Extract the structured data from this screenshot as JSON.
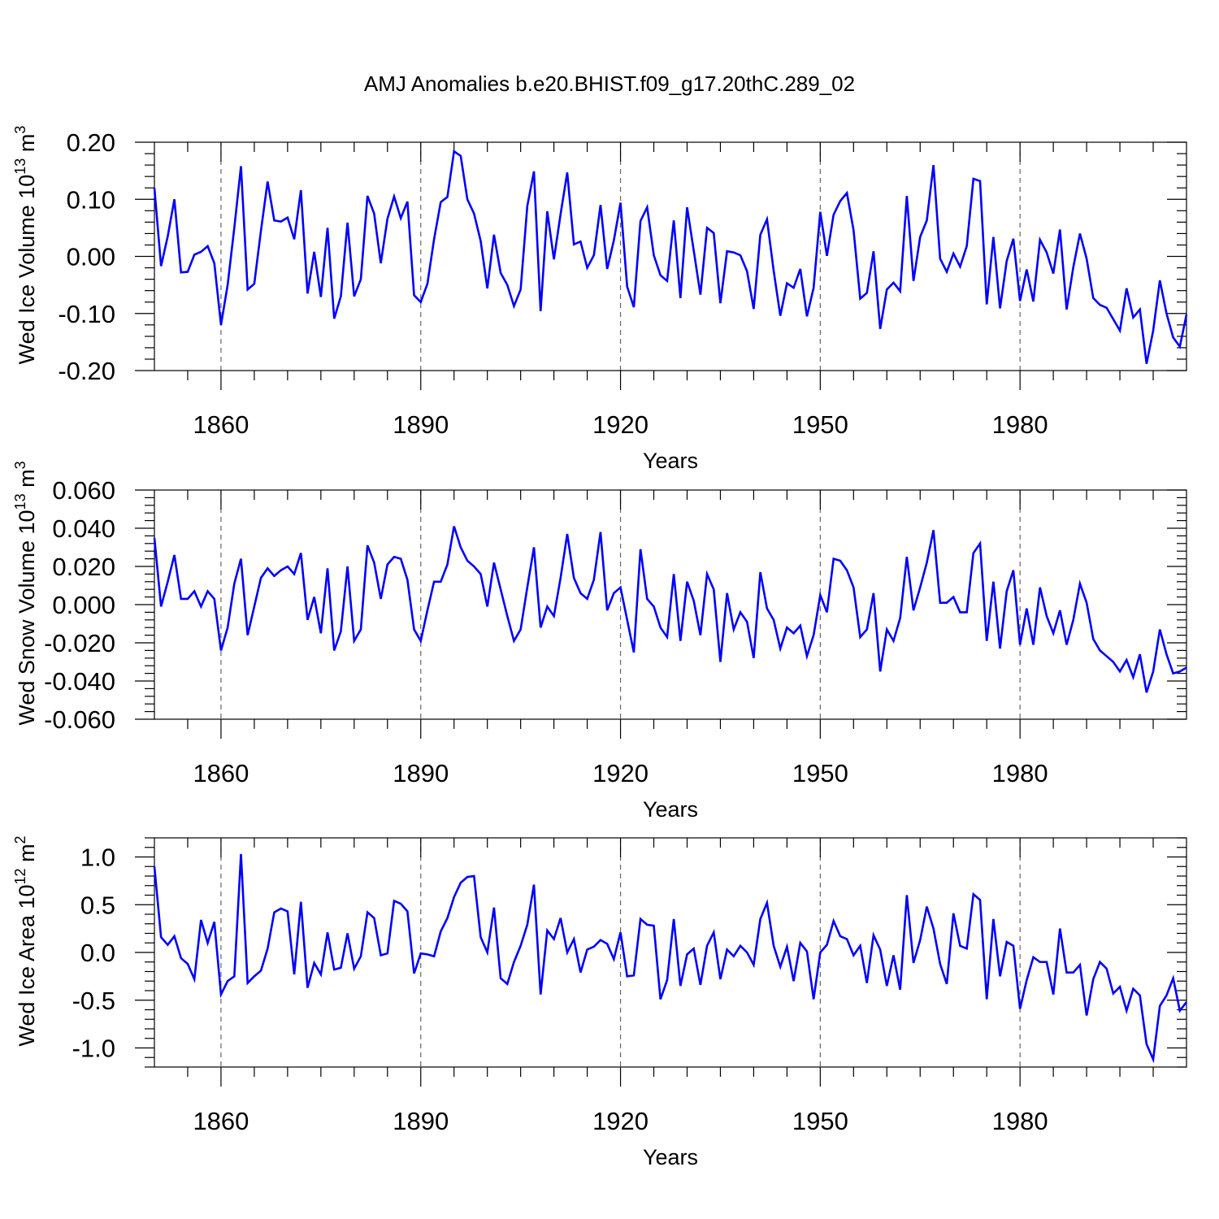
{
  "title": "AMJ Anomalies b.e20.BHIST.f09_g17.20thC.289_02",
  "chart_data": [
    {
      "type": "line",
      "ylabel": {
        "prefix": "Wed Ice Volume 10",
        "exponent": "13",
        "unit": " m",
        "unit_exp": "3"
      },
      "xlabel": "Years",
      "xlim": [
        1850,
        2005
      ],
      "ylim": [
        -0.2,
        0.2
      ],
      "yticks": [
        -0.2,
        -0.1,
        0.0,
        0.1,
        0.2
      ],
      "ytick_labels": [
        "-0.20",
        "-0.10",
        "0.00",
        "0.10",
        "0.20"
      ],
      "xticks": [
        1860,
        1890,
        1920,
        1950,
        1980
      ],
      "xtick_labels": [
        "1860",
        "1890",
        "1920",
        "1950",
        "1980"
      ],
      "x_start": 1850,
      "color": "#0000ff",
      "values": [
        0.12,
        -0.017,
        0.035,
        0.1,
        -0.028,
        -0.027,
        0.003,
        0.008,
        0.018,
        -0.012,
        -0.12,
        -0.05,
        0.05,
        0.158,
        -0.058,
        -0.048,
        0.045,
        0.131,
        0.063,
        0.061,
        0.068,
        0.03,
        0.116,
        -0.065,
        0.008,
        -0.071,
        0.05,
        -0.109,
        -0.07,
        0.059,
        -0.07,
        -0.04,
        0.106,
        0.075,
        -0.012,
        0.066,
        0.105,
        0.067,
        0.096,
        -0.068,
        -0.08,
        -0.048,
        0.03,
        0.095,
        0.104,
        0.184,
        0.176,
        0.1,
        0.075,
        0.027,
        -0.056,
        0.038,
        -0.029,
        -0.05,
        -0.087,
        -0.058,
        0.088,
        0.149,
        -0.096,
        0.079,
        -0.005,
        0.074,
        0.147,
        0.021,
        0.026,
        -0.02,
        0.002,
        0.09,
        -0.022,
        0.028,
        0.094,
        -0.053,
        -0.089,
        0.062,
        0.086,
        0.002,
        -0.033,
        -0.043,
        0.063,
        -0.073,
        0.086,
        0.01,
        -0.067,
        0.05,
        0.041,
        -0.082,
        0.009,
        0.007,
        0.002,
        -0.026,
        -0.092,
        0.038,
        0.065,
        -0.025,
        -0.104,
        -0.047,
        -0.055,
        -0.022,
        -0.105,
        -0.055,
        0.078,
        0.001,
        0.073,
        0.097,
        0.111,
        0.046,
        -0.074,
        -0.064,
        0.009,
        -0.127,
        -0.058,
        -0.046,
        -0.061,
        0.106,
        -0.043,
        0.034,
        0.063,
        0.16,
        -0.004,
        -0.027,
        0.005,
        -0.018,
        0.018,
        0.136,
        0.132,
        -0.084,
        0.034,
        -0.091,
        -0.008,
        0.031,
        -0.078,
        -0.023,
        -0.079,
        0.029,
        0.007,
        -0.03,
        0.047,
        -0.093,
        -0.019,
        0.04,
        -0.004,
        -0.073,
        -0.085,
        -0.09,
        -0.11,
        -0.13,
        -0.056,
        -0.107,
        -0.093,
        -0.188,
        -0.13,
        -0.042,
        -0.1,
        -0.142,
        -0.158,
        -0.102
      ]
    },
    {
      "type": "line",
      "ylabel": {
        "prefix": "Wed Snow Volume 10",
        "exponent": "13",
        "unit": " m",
        "unit_exp": "3"
      },
      "xlabel": "Years",
      "xlim": [
        1850,
        2005
      ],
      "ylim": [
        -0.06,
        0.06
      ],
      "yticks": [
        -0.06,
        -0.04,
        -0.02,
        0.0,
        0.02,
        0.04,
        0.06
      ],
      "ytick_labels": [
        "-0.060",
        "-0.040",
        "-0.020",
        "0.000",
        "0.020",
        "0.040",
        "0.060"
      ],
      "xticks": [
        1860,
        1890,
        1920,
        1950,
        1980
      ],
      "xtick_labels": [
        "1860",
        "1890",
        "1920",
        "1950",
        "1980"
      ],
      "x_start": 1850,
      "color": "#0000ff",
      "values": [
        0.035,
        -0.001,
        0.012,
        0.026,
        0.003,
        0.003,
        0.007,
        -0.001,
        0.007,
        0.003,
        -0.024,
        -0.012,
        0.011,
        0.024,
        -0.016,
        -0.001,
        0.014,
        0.019,
        0.015,
        0.018,
        0.02,
        0.016,
        0.027,
        -0.008,
        0.004,
        -0.015,
        0.019,
        -0.024,
        -0.014,
        0.02,
        -0.019,
        -0.013,
        0.031,
        0.022,
        0.003,
        0.021,
        0.025,
        0.024,
        0.013,
        -0.013,
        -0.019,
        -0.003,
        0.012,
        0.012,
        0.021,
        0.041,
        0.03,
        0.023,
        0.02,
        0.016,
        -0.001,
        0.022,
        0.008,
        -0.006,
        -0.019,
        -0.013,
        0.009,
        0.03,
        -0.012,
        -0.001,
        -0.006,
        0.014,
        0.037,
        0.014,
        0.006,
        0.003,
        0.013,
        0.038,
        -0.003,
        0.006,
        0.009,
        -0.008,
        -0.025,
        0.029,
        0.003,
        -0.001,
        -0.012,
        -0.017,
        0.016,
        -0.019,
        0.012,
        0.002,
        -0.016,
        0.016,
        0.008,
        -0.03,
        0.006,
        -0.013,
        -0.004,
        -0.009,
        -0.028,
        0.017,
        -0.002,
        -0.008,
        -0.023,
        -0.012,
        -0.015,
        -0.011,
        -0.027,
        -0.016,
        0.005,
        -0.004,
        0.024,
        0.023,
        0.018,
        0.009,
        -0.017,
        -0.013,
        0.006,
        -0.035,
        -0.013,
        -0.019,
        -0.007,
        0.025,
        -0.003,
        0.009,
        0.022,
        0.039,
        0.001,
        0.001,
        0.004,
        -0.004,
        -0.004,
        0.027,
        0.032,
        -0.019,
        0.012,
        -0.023,
        0.007,
        0.018,
        -0.021,
        -0.002,
        -0.021,
        0.009,
        -0.006,
        -0.015,
        -0.003,
        -0.021,
        -0.008,
        0.011,
        0.001,
        -0.018,
        -0.024,
        -0.027,
        -0.03,
        -0.035,
        -0.029,
        -0.038,
        -0.026,
        -0.046,
        -0.035,
        -0.013,
        -0.026,
        -0.036,
        -0.035,
        -0.033
      ]
    },
    {
      "type": "line",
      "ylabel": {
        "prefix": "Wed Ice Area 10",
        "exponent": "12",
        "unit": " m",
        "unit_exp": "2"
      },
      "xlabel": "Years",
      "xlim": [
        1850,
        2005
      ],
      "ylim": [
        -1.2,
        1.2
      ],
      "yticks": [
        -1.0,
        -0.5,
        0.0,
        0.5,
        1.0
      ],
      "ytick_labels": [
        "-1.0",
        "-0.5",
        "0.0",
        "0.5",
        "1.0"
      ],
      "xticks": [
        1860,
        1890,
        1920,
        1950,
        1980
      ],
      "xtick_labels": [
        "1860",
        "1890",
        "1920",
        "1950",
        "1980"
      ],
      "x_start": 1850,
      "color": "#0000ff",
      "values": [
        0.9,
        0.16,
        0.08,
        0.17,
        -0.06,
        -0.12,
        -0.28,
        0.34,
        0.1,
        0.32,
        -0.44,
        -0.3,
        -0.25,
        1.03,
        -0.32,
        -0.25,
        -0.19,
        0.04,
        0.42,
        0.46,
        0.43,
        -0.23,
        0.53,
        -0.37,
        -0.11,
        -0.23,
        0.21,
        -0.18,
        -0.16,
        0.2,
        -0.17,
        -0.04,
        0.42,
        0.36,
        -0.03,
        -0.01,
        0.54,
        0.51,
        0.43,
        -0.22,
        -0.01,
        -0.02,
        -0.04,
        0.22,
        0.36,
        0.58,
        0.73,
        0.79,
        0.8,
        0.16,
        0.0,
        0.47,
        -0.27,
        -0.33,
        -0.1,
        0.07,
        0.29,
        0.71,
        -0.44,
        0.23,
        0.14,
        0.36,
        0.0,
        0.14,
        -0.21,
        0.03,
        0.06,
        0.13,
        0.09,
        -0.07,
        0.21,
        -0.25,
        -0.24,
        0.35,
        0.29,
        0.28,
        -0.49,
        -0.29,
        0.35,
        -0.35,
        -0.02,
        0.04,
        -0.34,
        0.07,
        0.21,
        -0.28,
        0.03,
        -0.04,
        0.07,
        0.0,
        -0.13,
        0.35,
        0.52,
        0.07,
        -0.15,
        0.06,
        -0.3,
        0.1,
        0.01,
        -0.49,
        0.0,
        0.08,
        0.33,
        0.17,
        0.14,
        -0.03,
        0.07,
        -0.32,
        0.18,
        0.03,
        -0.35,
        -0.03,
        -0.39,
        0.6,
        -0.11,
        0.13,
        0.48,
        0.25,
        -0.12,
        -0.33,
        0.41,
        0.07,
        0.04,
        0.61,
        0.55,
        -0.49,
        0.35,
        -0.25,
        0.11,
        0.07,
        -0.59,
        -0.29,
        -0.05,
        -0.1,
        -0.1,
        -0.44,
        0.25,
        -0.21,
        -0.21,
        -0.13,
        -0.66,
        -0.28,
        -0.1,
        -0.17,
        -0.43,
        -0.36,
        -0.61,
        -0.38,
        -0.45,
        -0.96,
        -1.12,
        -0.56,
        -0.45,
        -0.27,
        -0.61,
        -0.52
      ]
    }
  ]
}
